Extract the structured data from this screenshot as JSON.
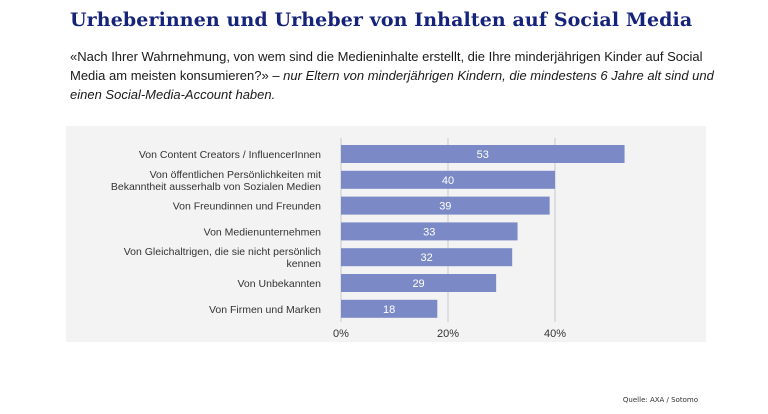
{
  "title": "Urheberinnen und Urheber von Inhalten auf Social Media",
  "question": "«Nach Ihrer Wahrnehmung, von wem sind die Medieninhalte erstellt, die Ihre minderjährigen Kinder auf Social Media am meisten konsumieren?»",
  "note": " – nur Eltern von minderjährigen Kindern, die mindestens 6 Jahre alt sind und einen Social-Media-Account haben.",
  "source": "Quelle: AXA / Sotomo",
  "colors": {
    "bar": "#7b8ac6",
    "title": "#15237a",
    "panel": "#f3f3f4"
  },
  "chart_data": {
    "type": "bar",
    "orientation": "horizontal",
    "categories": [
      [
        "Von Content Creators / InfluencerInnen"
      ],
      [
        "Von öffentlichen Persönlichkeiten mit",
        "Bekanntheit ausserhalb von Sozialen Medien"
      ],
      [
        "Von Freundinnen und Freunden"
      ],
      [
        "Von Medienunternehmen"
      ],
      [
        "Von Gleichaltrigen, die sie nicht persönlich",
        "kennen"
      ],
      [
        "Von Unbekannten"
      ],
      [
        "Von Firmen und Marken"
      ]
    ],
    "values": [
      53,
      40,
      39,
      33,
      32,
      29,
      18
    ],
    "xlim": [
      0,
      55
    ],
    "xticks": [
      0,
      20,
      40
    ],
    "xtick_labels": [
      "0%",
      "20%",
      "40%"
    ],
    "grid": true,
    "data_labels": true
  }
}
